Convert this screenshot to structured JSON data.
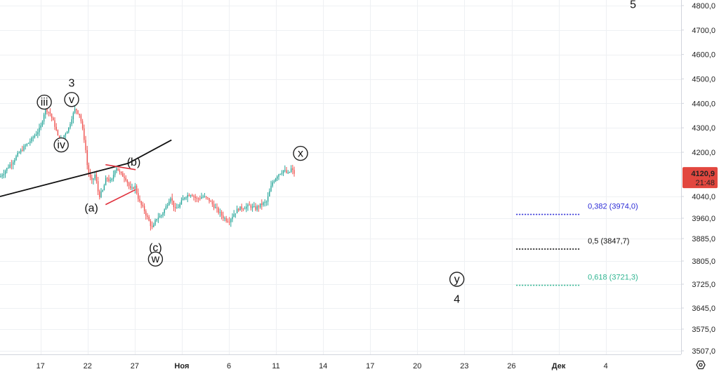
{
  "chart_data": {
    "type": "candlestick",
    "ylim": [
      3480,
      4830
    ],
    "y_ticks": [
      "4800,0",
      "4700,0",
      "4600,0",
      "4500,0",
      "4400,0",
      "4300,0",
      "4200,0",
      "4040,0",
      "3960,0",
      "3885,0",
      "3805,0",
      "3725,0",
      "3645,0",
      "3575,0",
      "3507,0"
    ],
    "y_tick_values": [
      4800,
      4700,
      4600,
      4500,
      4400,
      4300,
      4200,
      4040,
      3960,
      3885,
      3805,
      3725,
      3645,
      3575,
      3507
    ],
    "x_ticks": [
      "17",
      "22",
      "27",
      "Ноя",
      "6",
      "11",
      "14",
      "17",
      "20",
      "23",
      "26",
      "Дек",
      "4"
    ],
    "x_tick_days": [
      17,
      22,
      27,
      32,
      37,
      42,
      47,
      52,
      57,
      62,
      67,
      72,
      77
    ],
    "x_range_days": [
      12.7,
      85
    ],
    "last_price": {
      "price": "4120,9",
      "time": "21:48",
      "value": 4120.9
    },
    "price_path": [
      [
        12.7,
        4110
      ],
      [
        14,
        4165
      ],
      [
        15,
        4210
      ],
      [
        16,
        4250
      ],
      [
        17,
        4300
      ],
      [
        17.5,
        4380
      ],
      [
        18,
        4360
      ],
      [
        18.6,
        4300
      ],
      [
        19,
        4240
      ],
      [
        19.5,
        4270
      ],
      [
        20,
        4300
      ],
      [
        20.3,
        4340
      ],
      [
        20.7,
        4380
      ],
      [
        21.2,
        4350
      ],
      [
        21.7,
        4240
      ],
      [
        22,
        4140
      ],
      [
        22.4,
        4090
      ],
      [
        22.8,
        4120
      ],
      [
        23.2,
        4040
      ],
      [
        23.6,
        4060
      ],
      [
        24,
        4110
      ],
      [
        24.5,
        4090
      ],
      [
        25,
        4150
      ],
      [
        25.5,
        4120
      ],
      [
        26,
        4110
      ],
      [
        26.6,
        4060
      ],
      [
        27,
        4080
      ],
      [
        27.5,
        4020
      ],
      [
        28,
        3990
      ],
      [
        28.5,
        3950
      ],
      [
        28.9,
        3920
      ],
      [
        29.3,
        3960
      ],
      [
        29.8,
        3970
      ],
      [
        30.3,
        4000
      ],
      [
        30.8,
        4040
      ],
      [
        31.3,
        3990
      ],
      [
        31.8,
        4010
      ],
      [
        32.3,
        4040
      ],
      [
        33,
        4050
      ],
      [
        33.6,
        4030
      ],
      [
        34.2,
        4040
      ],
      [
        34.8,
        4030
      ],
      [
        35.5,
        4000
      ],
      [
        36,
        3980
      ],
      [
        36.5,
        3960
      ],
      [
        37,
        3950
      ],
      [
        37.5,
        3975
      ],
      [
        38,
        3995
      ],
      [
        38.6,
        4000
      ],
      [
        39.2,
        4005
      ],
      [
        39.8,
        3995
      ],
      [
        40.4,
        4010
      ],
      [
        41,
        4020
      ],
      [
        41.6,
        4090
      ],
      [
        42.2,
        4120
      ],
      [
        42.8,
        4135
      ],
      [
        43.3,
        4120
      ],
      [
        43.6,
        4140
      ],
      [
        44,
        4120.9
      ]
    ],
    "wave_labels": [
      {
        "text": "iii",
        "circled": true,
        "day": 17.4,
        "price": 4405
      },
      {
        "text": "3",
        "circled": false,
        "day": 20.3,
        "price": 4485
      },
      {
        "text": "v",
        "circled": true,
        "day": 20.3,
        "price": 4416
      },
      {
        "text": "iv",
        "circled": true,
        "day": 19.2,
        "price": 4230
      },
      {
        "text": "(a)",
        "circled": false,
        "day": 22.4,
        "price": 4000
      },
      {
        "text": "(b)",
        "circled": false,
        "day": 26.9,
        "price": 4167
      },
      {
        "text": "(c)",
        "circled": false,
        "day": 29.2,
        "price": 3855
      },
      {
        "text": "w",
        "circled": true,
        "day": 29.2,
        "price": 3812
      },
      {
        "text": "x",
        "circled": true,
        "day": 44.6,
        "price": 4196
      },
      {
        "text": "y",
        "circled": true,
        "day": 61.2,
        "price": 3742
      },
      {
        "text": "4",
        "circled": false,
        "day": 61.2,
        "price": 3677
      },
      {
        "text": "5",
        "circled": false,
        "day": 79.9,
        "price": 4807
      }
    ],
    "trendline": {
      "color": "#111111",
      "points": [
        [
          12.7,
          4040
        ],
        [
          26.3,
          4160
        ],
        [
          30.9,
          4250
        ]
      ]
    },
    "triangle": {
      "color": "#e0313d",
      "upper": [
        [
          23.9,
          4155
        ],
        [
          27.1,
          4137
        ]
      ],
      "lower": [
        [
          23.9,
          4010
        ],
        [
          27.1,
          4065
        ]
      ]
    },
    "fibonacci_levels": [
      {
        "ratio": "0,382",
        "price": "3974,0",
        "value": 3974.0,
        "color": "#2b2bd6"
      },
      {
        "ratio": "0,5",
        "price": "3847,7",
        "value": 3847.7,
        "color": "#111111"
      },
      {
        "ratio": "0,618",
        "price": "3721,3",
        "value": 3721.3,
        "color": "#2fb591"
      }
    ],
    "fib_span_days": [
      67.5,
      74.2
    ],
    "colors": {
      "up": "#26a69a",
      "down": "#ef5350",
      "last_price_bg": "#e2473f"
    }
  },
  "ui": {
    "settings_icon": "gear-icon"
  }
}
